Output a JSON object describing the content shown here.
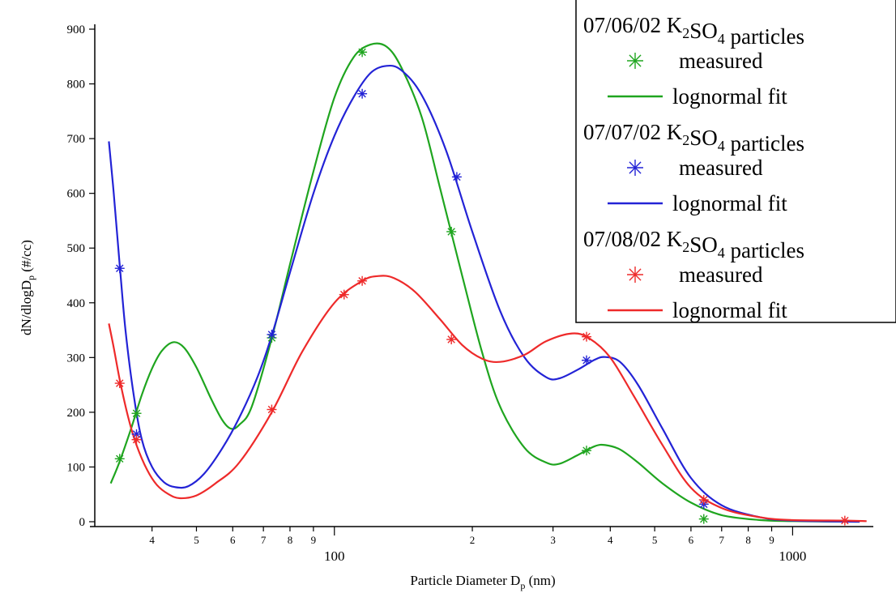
{
  "chart_data": {
    "type": "scatter",
    "xscale": "log",
    "xlim": [
      30,
      1500
    ],
    "ylim": [
      0,
      900
    ],
    "xlabel": "Particle Diameter Dp (nm)",
    "ylabel": "dN/dlogDp (#/cc)",
    "x_major_ticks": [
      {
        "value": 100,
        "label": "100"
      },
      {
        "value": 1000,
        "label": "1000"
      }
    ],
    "x_minor_ticks": [
      {
        "value": 40,
        "label": "4"
      },
      {
        "value": 50,
        "label": "5"
      },
      {
        "value": 60,
        "label": "6"
      },
      {
        "value": 70,
        "label": "7"
      },
      {
        "value": 80,
        "label": "8"
      },
      {
        "value": 90,
        "label": "9"
      },
      {
        "value": 200,
        "label": "2"
      },
      {
        "value": 300,
        "label": "3"
      },
      {
        "value": 400,
        "label": "4"
      },
      {
        "value": 500,
        "label": "5"
      },
      {
        "value": 600,
        "label": "6"
      },
      {
        "value": 700,
        "label": "7"
      },
      {
        "value": 800,
        "label": "8"
      },
      {
        "value": 900,
        "label": "9"
      }
    ],
    "y_ticks": [
      {
        "value": 0,
        "label": "0"
      },
      {
        "value": 100,
        "label": "100"
      },
      {
        "value": 200,
        "label": "200"
      },
      {
        "value": 300,
        "label": "300"
      },
      {
        "value": 400,
        "label": "400"
      },
      {
        "value": 500,
        "label": "500"
      },
      {
        "value": 600,
        "label": "600"
      },
      {
        "value": 700,
        "label": "700"
      },
      {
        "value": 800,
        "label": "800"
      },
      {
        "value": 900,
        "label": "900"
      }
    ],
    "legend_placement": "top-right",
    "grid": false,
    "series": [
      {
        "name": "07/06/02 K2SO4 particles",
        "color": "#1fa51f",
        "measured_label": "measured",
        "fit_label": "lognormal fit",
        "measured": [
          [
            34,
            115
          ],
          [
            37,
            198
          ],
          [
            73,
            336
          ],
          [
            115,
            858
          ],
          [
            180,
            530
          ],
          [
            355,
            130
          ],
          [
            640,
            5
          ]
        ],
        "fit": [
          [
            32.5,
            70
          ],
          [
            34,
            110
          ],
          [
            36,
            170
          ],
          [
            38,
            232
          ],
          [
            40,
            280
          ],
          [
            42,
            312
          ],
          [
            44.5,
            328
          ],
          [
            47,
            318
          ],
          [
            50,
            282
          ],
          [
            54,
            222
          ],
          [
            57,
            185
          ],
          [
            59.5,
            170
          ],
          [
            62,
            177
          ],
          [
            66,
            210
          ],
          [
            73,
            335
          ],
          [
            80,
            470
          ],
          [
            90,
            640
          ],
          [
            100,
            775
          ],
          [
            110,
            848
          ],
          [
            120,
            872
          ],
          [
            130,
            868
          ],
          [
            140,
            830
          ],
          [
            155,
            740
          ],
          [
            170,
            610
          ],
          [
            190,
            450
          ],
          [
            210,
            310
          ],
          [
            230,
            210
          ],
          [
            260,
            135
          ],
          [
            290,
            108
          ],
          [
            310,
            106
          ],
          [
            340,
            122
          ],
          [
            370,
            138
          ],
          [
            390,
            140
          ],
          [
            420,
            132
          ],
          [
            460,
            108
          ],
          [
            520,
            70
          ],
          [
            600,
            35
          ],
          [
            700,
            12
          ],
          [
            850,
            3
          ],
          [
            1000,
            1
          ],
          [
            1400,
            0
          ]
        ]
      },
      {
        "name": "07/07/02 K2SO4 particles",
        "color": "#2323d6",
        "measured_label": "measured",
        "fit_label": "lognormal fit",
        "measured": [
          [
            34,
            463
          ],
          [
            37,
            160
          ],
          [
            73,
            342
          ],
          [
            115,
            782
          ],
          [
            185,
            630
          ],
          [
            355,
            295
          ],
          [
            640,
            32
          ]
        ],
        "fit": [
          [
            32.2,
            695
          ],
          [
            33,
            600
          ],
          [
            34,
            470
          ],
          [
            35,
            350
          ],
          [
            36.5,
            230
          ],
          [
            38,
            150
          ],
          [
            40,
            100
          ],
          [
            42.5,
            72
          ],
          [
            45,
            63
          ],
          [
            48,
            65
          ],
          [
            52,
            88
          ],
          [
            57,
            135
          ],
          [
            62,
            190
          ],
          [
            68,
            265
          ],
          [
            73,
            340
          ],
          [
            80,
            455
          ],
          [
            90,
            600
          ],
          [
            100,
            705
          ],
          [
            110,
            775
          ],
          [
            120,
            820
          ],
          [
            130,
            833
          ],
          [
            140,
            825
          ],
          [
            155,
            780
          ],
          [
            175,
            680
          ],
          [
            200,
            530
          ],
          [
            230,
            385
          ],
          [
            260,
            300
          ],
          [
            290,
            264
          ],
          [
            310,
            262
          ],
          [
            340,
            278
          ],
          [
            370,
            296
          ],
          [
            390,
            301
          ],
          [
            420,
            292
          ],
          [
            460,
            250
          ],
          [
            520,
            170
          ],
          [
            600,
            80
          ],
          [
            700,
            30
          ],
          [
            850,
            8
          ],
          [
            1000,
            2
          ],
          [
            1400,
            0
          ]
        ]
      },
      {
        "name": "07/08/02 K2SO4 particles",
        "color": "#ee2a2a",
        "measured_label": "measured",
        "fit_label": "lognormal fit",
        "measured": [
          [
            34,
            253
          ],
          [
            37,
            150
          ],
          [
            73,
            205
          ],
          [
            105,
            415
          ],
          [
            115,
            440
          ],
          [
            180,
            333
          ],
          [
            355,
            338
          ],
          [
            640,
            40
          ],
          [
            1300,
            2
          ]
        ],
        "fit": [
          [
            32.2,
            362
          ],
          [
            33,
            318
          ],
          [
            34,
            260
          ],
          [
            35.5,
            190
          ],
          [
            37,
            140
          ],
          [
            39,
            95
          ],
          [
            41,
            67
          ],
          [
            43.5,
            50
          ],
          [
            46,
            43
          ],
          [
            50,
            48
          ],
          [
            55,
            70
          ],
          [
            62,
            108
          ],
          [
            73,
            200
          ],
          [
            85,
            310
          ],
          [
            100,
            400
          ],
          [
            115,
            440
          ],
          [
            125,
            449
          ],
          [
            135,
            445
          ],
          [
            150,
            420
          ],
          [
            170,
            370
          ],
          [
            190,
            323
          ],
          [
            210,
            298
          ],
          [
            230,
            292
          ],
          [
            260,
            305
          ],
          [
            290,
            330
          ],
          [
            330,
            344
          ],
          [
            360,
            335
          ],
          [
            400,
            300
          ],
          [
            450,
            230
          ],
          [
            520,
            140
          ],
          [
            600,
            62
          ],
          [
            700,
            25
          ],
          [
            850,
            8
          ],
          [
            1000,
            3
          ],
          [
            1300,
            2
          ],
          [
            1450,
            1
          ]
        ]
      }
    ]
  }
}
